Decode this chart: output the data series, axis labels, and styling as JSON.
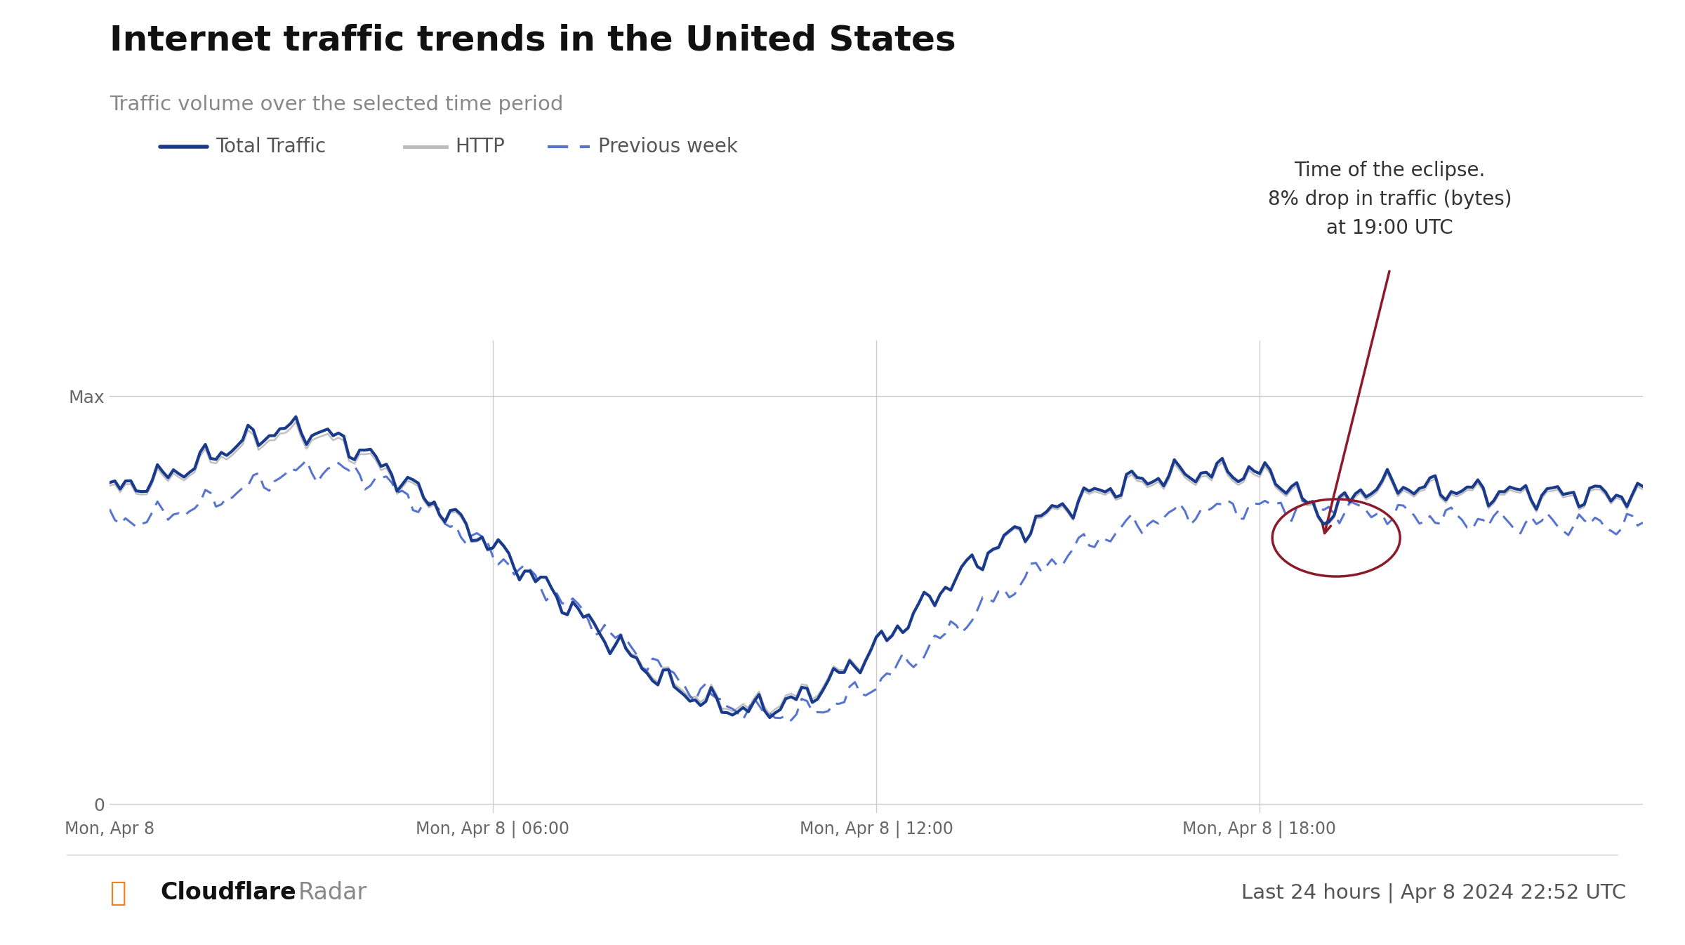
{
  "title": "Internet traffic trends in the United States",
  "subtitle": "Traffic volume over the selected time period",
  "legend_entries": [
    "Total Traffic",
    "HTTP",
    "Previous week"
  ],
  "x_tick_positions": [
    0,
    6,
    12,
    18
  ],
  "x_tick_labels": [
    "Mon, Apr 8",
    "Mon, Apr 8 | 06:00",
    "Mon, Apr 8 | 12:00",
    "Mon, Apr 8 | 18:00"
  ],
  "annotation_text": "Time of the eclipse.\n8% drop in traffic (bytes)\nat 19:00 UTC",
  "annotation_color": "#333333",
  "arrow_color": "#8B1A2A",
  "circle_color": "#8B1A2A",
  "line_color_total": "#1a3a8c",
  "line_color_http": "#aaaaaa",
  "line_color_prev": "#3a5cc7",
  "grid_color": "#cccccc",
  "bg_color": "#ffffff",
  "footer_left_bold": "Cloudflare",
  "footer_left_light": "Radar",
  "footer_right": "Last 24 hours | Apr 8 2024 22:52 UTC",
  "cloudflare_color": "#f38020",
  "title_color": "#111111",
  "subtitle_color": "#888888",
  "tick_color": "#666666"
}
